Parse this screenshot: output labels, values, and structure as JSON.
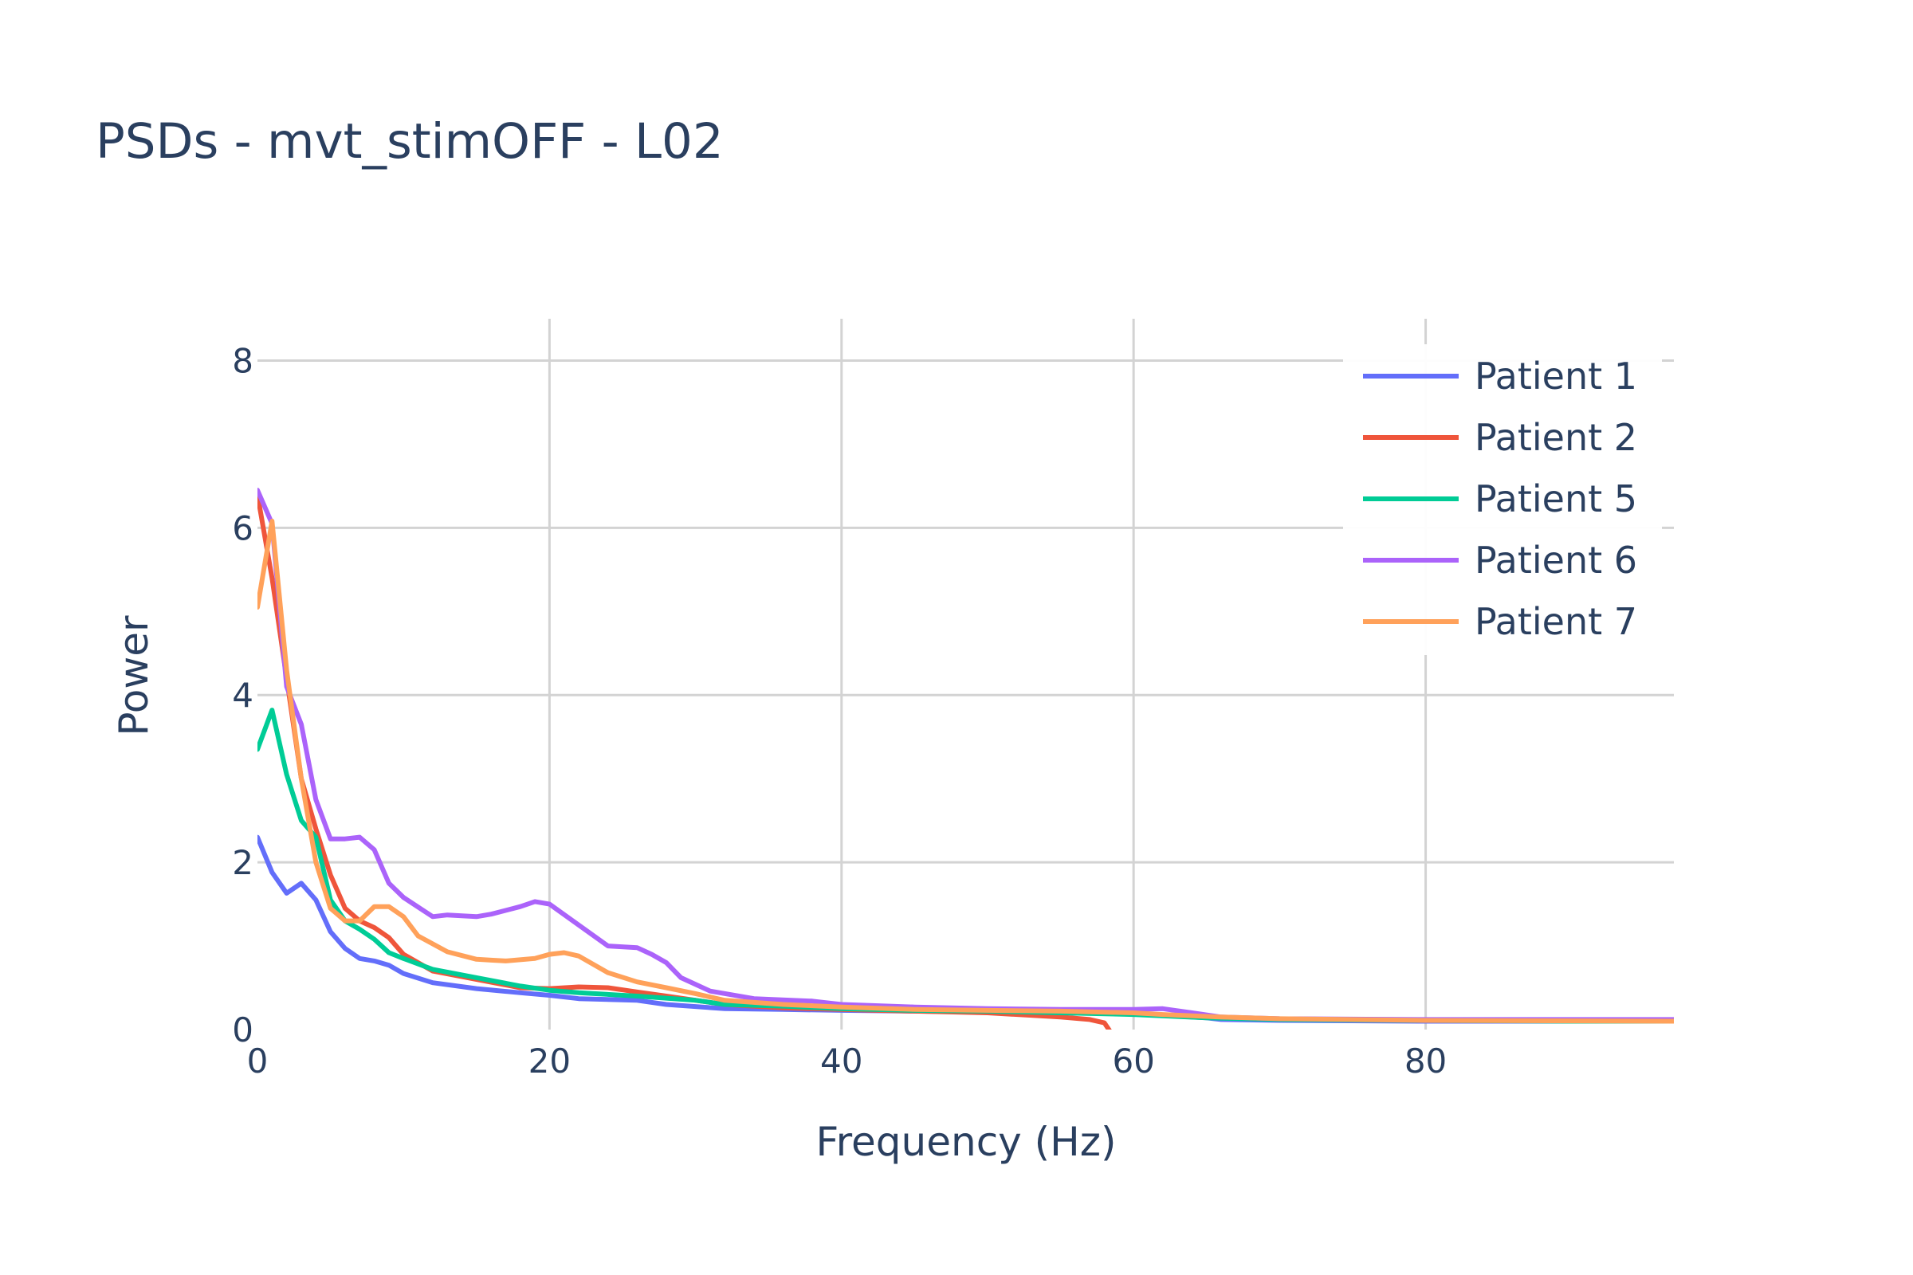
{
  "chart_data": {
    "type": "line",
    "title": "PSDs - mvt_stimOFF - L02",
    "xlabel": "Frequency (Hz)",
    "ylabel": "Power",
    "xlim": [
      0,
      97
    ],
    "ylim": [
      0,
      8.5
    ],
    "x_ticks": [
      0,
      20,
      40,
      60,
      80
    ],
    "y_ticks": [
      0,
      2,
      4,
      6,
      8
    ],
    "grid": true,
    "legend_position": "top-right",
    "series": [
      {
        "name": "Patient 1",
        "color": "#636efa",
        "x": [
          0,
          1,
          2,
          3,
          4,
          5,
          6,
          7,
          8,
          9,
          10,
          12,
          15,
          18,
          20,
          22,
          26,
          28,
          32,
          36,
          40,
          45,
          50,
          55,
          60,
          65,
          66,
          70,
          80,
          90,
          97
        ],
        "y": [
          2.3,
          1.88,
          1.63,
          1.75,
          1.55,
          1.17,
          0.97,
          0.85,
          0.82,
          0.77,
          0.67,
          0.56,
          0.49,
          0.44,
          0.41,
          0.37,
          0.35,
          0.3,
          0.25,
          0.24,
          0.23,
          0.22,
          0.21,
          0.2,
          0.19,
          0.14,
          0.12,
          0.11,
          0.1,
          0.1,
          0.1
        ]
      },
      {
        "name": "Patient 2",
        "color": "#ef553b",
        "x": [
          0,
          1,
          2,
          3,
          4,
          5,
          6,
          7,
          8,
          9,
          10,
          12,
          15,
          18,
          20,
          22,
          24,
          26,
          28,
          32,
          36,
          40,
          45,
          50,
          55,
          57,
          58,
          58.5
        ],
        "y": [
          6.4,
          5.4,
          4.2,
          3.0,
          2.4,
          1.85,
          1.45,
          1.3,
          1.22,
          1.1,
          0.9,
          0.7,
          0.6,
          0.5,
          0.49,
          0.51,
          0.5,
          0.45,
          0.4,
          0.3,
          0.26,
          0.24,
          0.22,
          0.2,
          0.15,
          0.12,
          0.08,
          -0.05
        ]
      },
      {
        "name": "Patient 5",
        "color": "#00cc96",
        "x": [
          0,
          1,
          2,
          3,
          4,
          5,
          6,
          7,
          8,
          9,
          10,
          12,
          15,
          18,
          20,
          22,
          26,
          30,
          32,
          36,
          40,
          45,
          50,
          55,
          60,
          65,
          70,
          80,
          90,
          97
        ],
        "y": [
          3.35,
          3.82,
          3.05,
          2.5,
          2.3,
          1.55,
          1.3,
          1.2,
          1.08,
          0.92,
          0.85,
          0.72,
          0.62,
          0.52,
          0.47,
          0.44,
          0.4,
          0.35,
          0.3,
          0.28,
          0.25,
          0.23,
          0.22,
          0.2,
          0.18,
          0.14,
          0.12,
          0.11,
          0.1,
          0.1
        ]
      },
      {
        "name": "Patient 6",
        "color": "#ab63fa",
        "x": [
          0,
          1,
          2,
          3,
          4,
          5,
          6,
          7,
          8,
          9,
          10,
          12,
          13,
          15,
          16,
          18,
          19,
          20,
          22,
          24,
          26,
          27,
          28,
          29,
          31,
          34,
          38,
          40,
          45,
          50,
          55,
          60,
          62,
          64,
          66,
          70,
          80,
          97
        ],
        "y": [
          6.45,
          6.05,
          4.1,
          3.65,
          2.75,
          2.28,
          2.28,
          2.3,
          2.15,
          1.75,
          1.58,
          1.35,
          1.37,
          1.35,
          1.38,
          1.47,
          1.53,
          1.5,
          1.25,
          1.0,
          0.98,
          0.9,
          0.8,
          0.62,
          0.46,
          0.37,
          0.34,
          0.3,
          0.27,
          0.25,
          0.24,
          0.24,
          0.25,
          0.2,
          0.15,
          0.13,
          0.12,
          0.12
        ]
      },
      {
        "name": "Patient 7",
        "color": "#ffa15a",
        "x": [
          0,
          1,
          2,
          3,
          4,
          5,
          6,
          7,
          8,
          9,
          10,
          11,
          13,
          15,
          16,
          17,
          19,
          20,
          21,
          22,
          24,
          26,
          28,
          30,
          32,
          36,
          40,
          45,
          50,
          55,
          60,
          62,
          66,
          70,
          80,
          97
        ],
        "y": [
          5.05,
          6.08,
          4.3,
          3.0,
          2.0,
          1.45,
          1.3,
          1.3,
          1.47,
          1.47,
          1.35,
          1.12,
          0.93,
          0.84,
          0.83,
          0.82,
          0.85,
          0.9,
          0.92,
          0.88,
          0.68,
          0.57,
          0.5,
          0.43,
          0.35,
          0.3,
          0.27,
          0.24,
          0.23,
          0.22,
          0.2,
          0.18,
          0.15,
          0.13,
          0.11,
          0.1
        ]
      }
    ]
  }
}
